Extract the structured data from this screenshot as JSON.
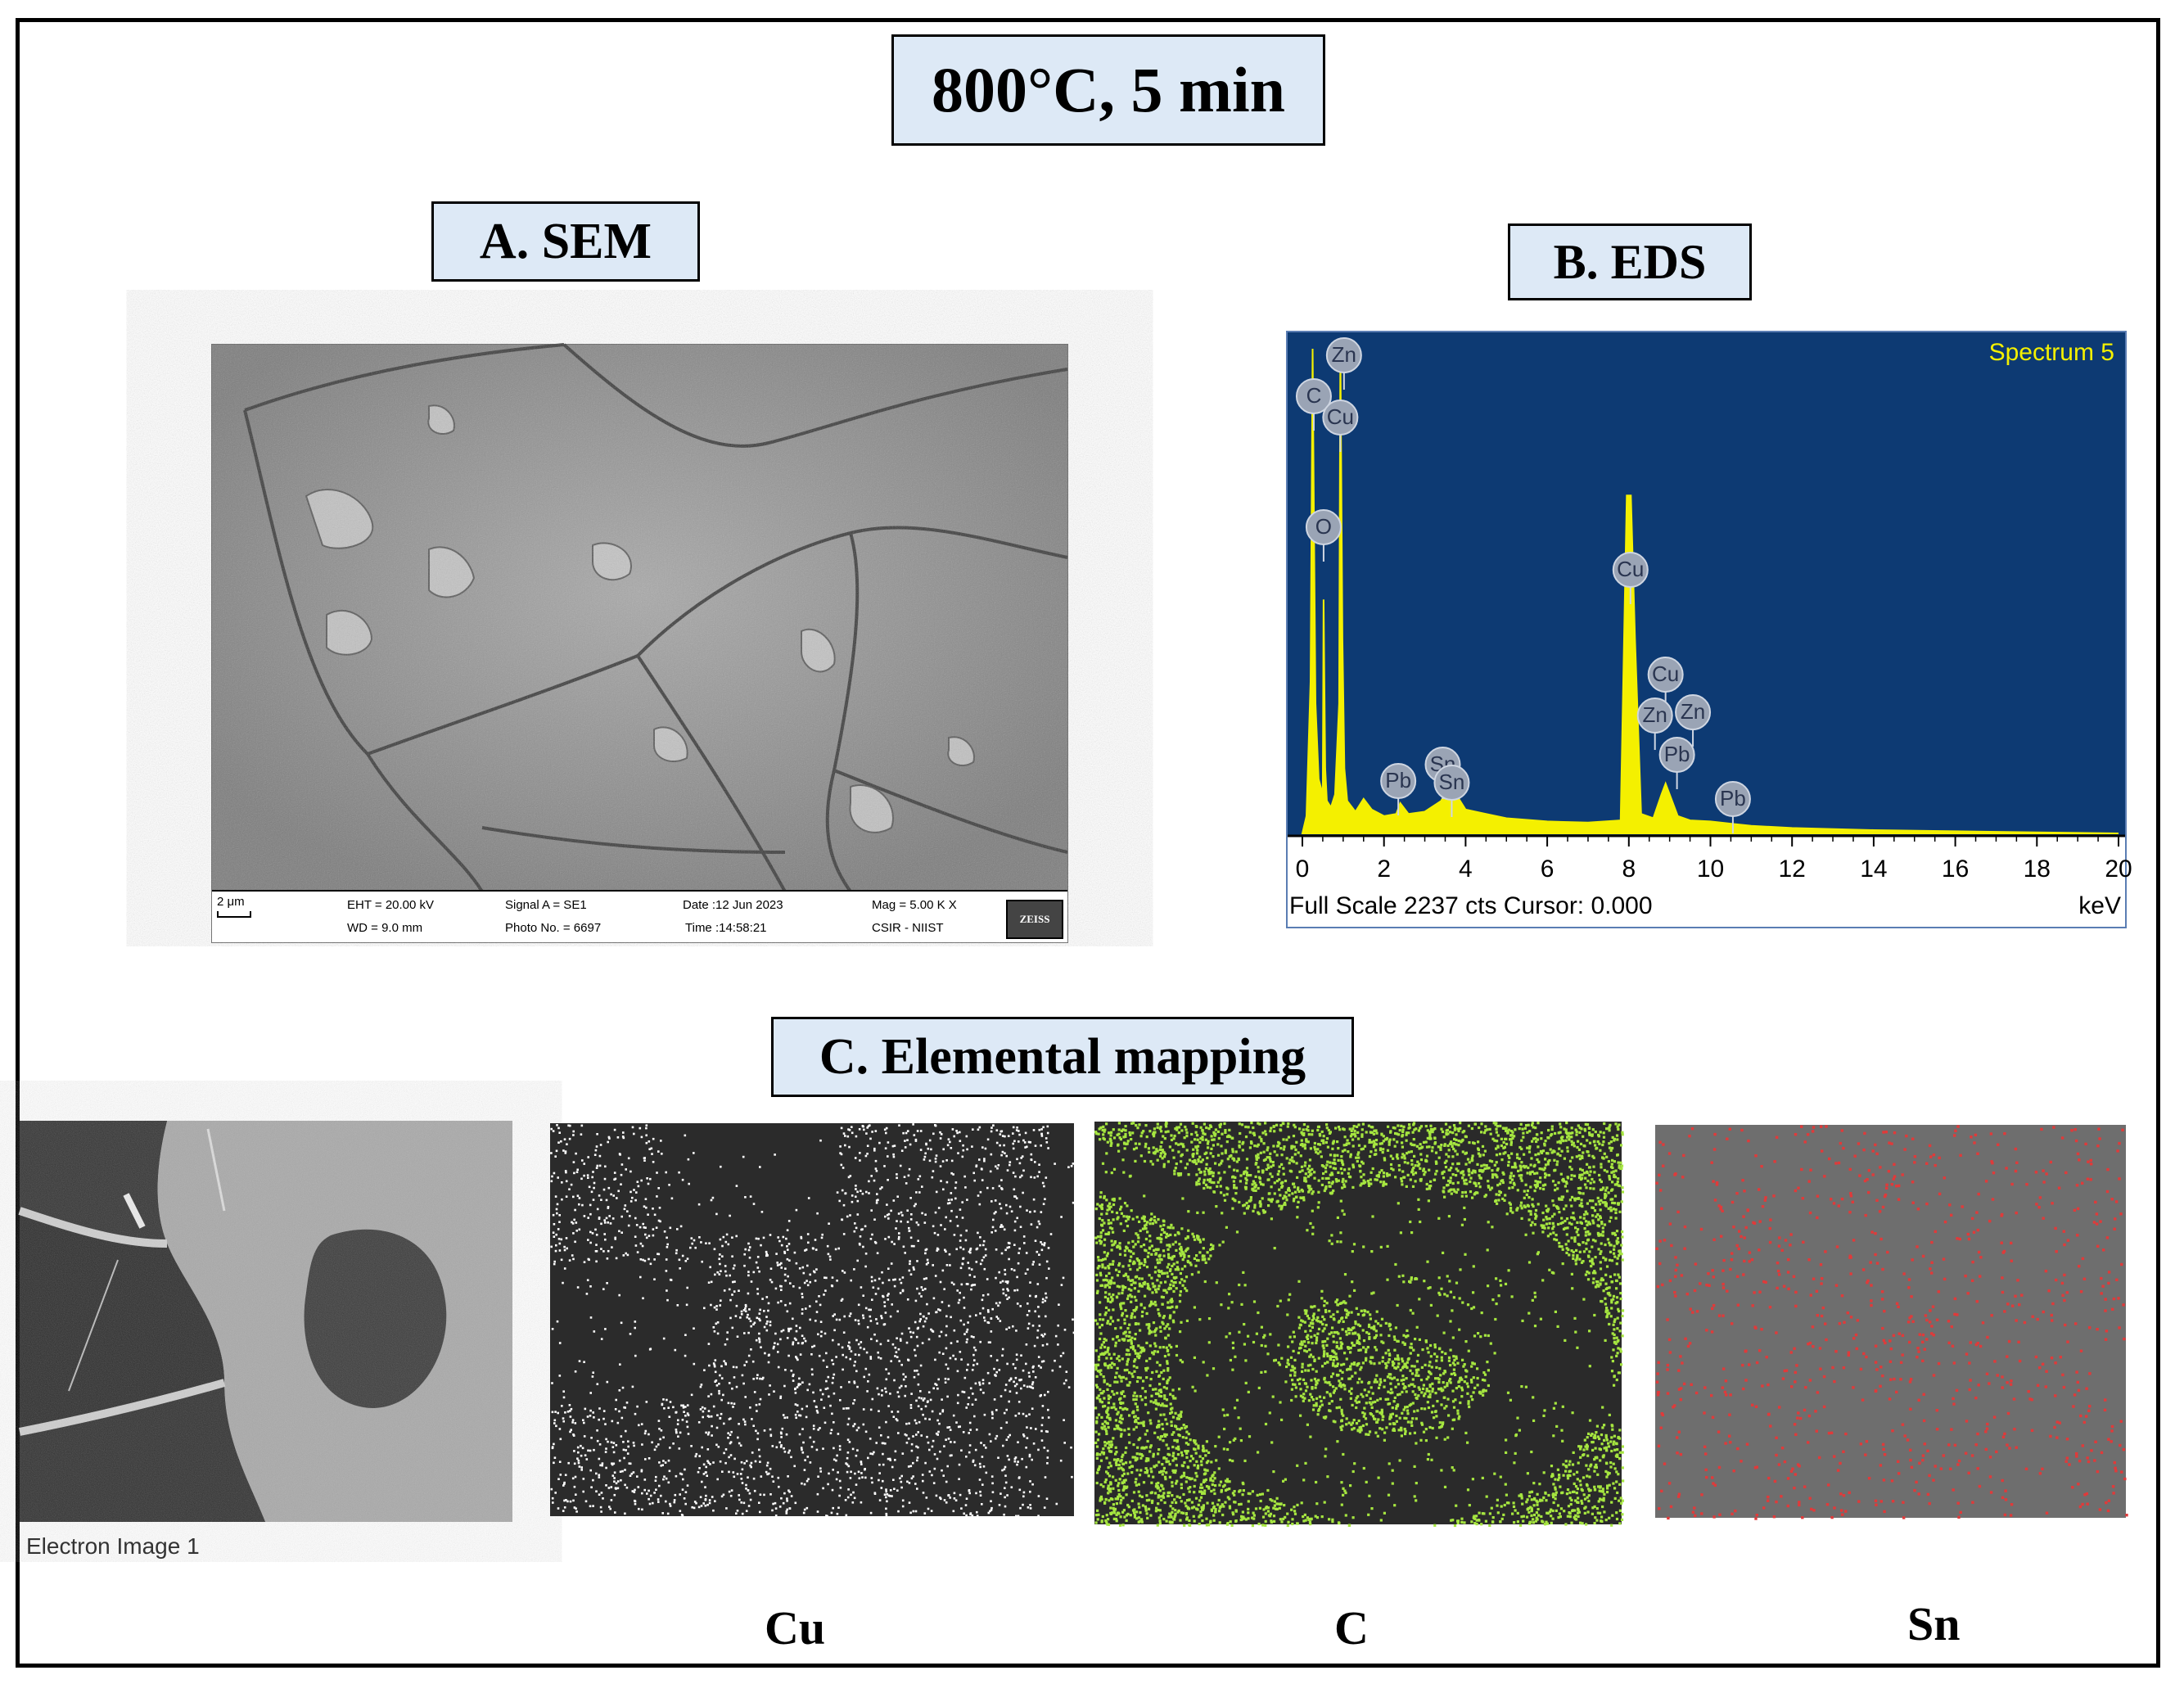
{
  "title": "800°C, 5 min",
  "panels": {
    "sem": {
      "label": "A.  SEM",
      "scale_bar": "2 μm",
      "info": {
        "eht": "EHT = 20.00 kV",
        "wd": "WD = 9.0 mm",
        "signal": "Signal A = SE1",
        "photo": "Photo No. = 6697",
        "date": "Date :12 Jun 2023",
        "time": "Time :14:58:21",
        "mag": "Mag =  5.00 K X",
        "org": "CSIR - NIIST",
        "logo": "ZEISS"
      }
    },
    "eds": {
      "label": "B.  EDS",
      "spectrum_name": "Spectrum 5",
      "footer": "Full Scale 2237 cts Cursor: 0.000",
      "unit": "keV",
      "colors": {
        "background": "#0d3a73",
        "spectrum": "#f4f000",
        "axis_text": "#000000"
      }
    },
    "mapping": {
      "label": "C.  Elemental mapping",
      "electron_caption": "Electron Image 1",
      "maps": [
        {
          "element": "Cu",
          "color": "#ffffff"
        },
        {
          "element": "C",
          "color": "#a6e640"
        },
        {
          "element": "Sn",
          "color": "#e03a3a"
        }
      ]
    }
  },
  "chart_data": {
    "type": "line",
    "title": "Spectrum 5",
    "xlabel": "keV",
    "ylabel": "",
    "xlim": [
      0,
      20
    ],
    "x_ticks": [
      "0",
      "2",
      "4",
      "6",
      "8",
      "10",
      "12",
      "14",
      "16",
      "18",
      "20"
    ],
    "series": [
      {
        "x": [
          0.0,
          0.1,
          0.2,
          0.25,
          0.28,
          0.32,
          0.4,
          0.5,
          0.52,
          0.56,
          0.6,
          0.7,
          0.8,
          0.9,
          0.93,
          0.98,
          1.03,
          1.1,
          1.3,
          1.5,
          1.7,
          2.0,
          2.3,
          2.4,
          2.6,
          3.0,
          3.4,
          3.6,
          3.8,
          4.0,
          4.5,
          5.0,
          6.0,
          7.0,
          7.8,
          7.95,
          8.05,
          8.15,
          8.3,
          8.6,
          8.8,
          8.9,
          9.0,
          9.2,
          9.5,
          10.0,
          10.5,
          11.0,
          12.0,
          14.0,
          16.0,
          18.0,
          20.0
        ],
        "y": [
          0,
          80,
          700,
          2237,
          1500,
          600,
          250,
          180,
          1080,
          300,
          150,
          120,
          180,
          600,
          2237,
          900,
          300,
          150,
          100,
          160,
          110,
          80,
          90,
          140,
          90,
          100,
          150,
          220,
          170,
          110,
          90,
          70,
          55,
          50,
          60,
          1560,
          1560,
          900,
          90,
          70,
          180,
          230,
          180,
          80,
          60,
          55,
          45,
          35,
          25,
          15,
          10,
          5,
          0
        ]
      }
    ],
    "peak_labels": [
      {
        "element": "C",
        "x": 0.28
      },
      {
        "element": "Zn",
        "x": 1.02
      },
      {
        "element": "Cu",
        "x": 0.93
      },
      {
        "element": "O",
        "x": 0.52
      },
      {
        "element": "Cu",
        "x": 8.04
      },
      {
        "element": "Cu",
        "x": 8.9
      },
      {
        "element": "Zn",
        "x": 8.64
      },
      {
        "element": "Zn",
        "x": 9.57
      },
      {
        "element": "Pb",
        "x": 9.18
      },
      {
        "element": "Pb",
        "x": 2.35
      },
      {
        "element": "Sn",
        "x": 3.44
      },
      {
        "element": "Sn",
        "x": 3.66
      },
      {
        "element": "Pb",
        "x": 10.55
      }
    ]
  }
}
